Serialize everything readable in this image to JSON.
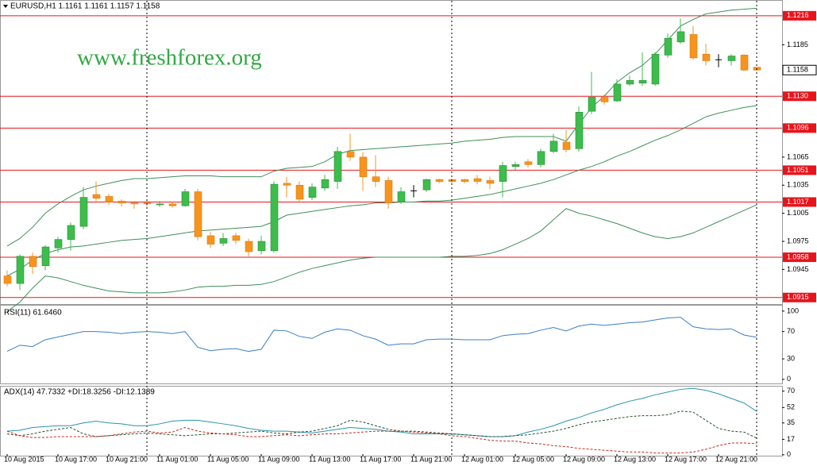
{
  "chart_data": [
    {
      "type": "candlestick",
      "title": "EURUSD,H1  1.1161 1.1161 1.1157 1.1158",
      "watermark": "www.freshforex.org",
      "categories": [
        "10 Aug 2015",
        null,
        null,
        null,
        "10 Aug 17:00",
        null,
        null,
        null,
        "10 Aug 21:00",
        null,
        null,
        null,
        "11 Aug 01:00",
        null,
        null,
        null,
        "11 Aug 05:00",
        null,
        null,
        null,
        "11 Aug 09:00",
        null,
        null,
        null,
        "11 Aug 13:00",
        null,
        null,
        null,
        "11 Aug 17:00",
        null,
        null,
        null,
        "11 Aug 21:00",
        null,
        null,
        null,
        "12 Aug 01:00",
        null,
        null,
        null,
        "12 Aug 05:00",
        null,
        null,
        null,
        "12 Aug 09:00",
        null,
        null,
        null,
        "12 Aug 13:00",
        null,
        null,
        null,
        "12 Aug 17:00",
        null,
        null,
        null,
        "12 Aug 21:00",
        null,
        null,
        null
      ],
      "open": [
        1.0938,
        1.093,
        1.0959,
        1.0949,
        1.0968,
        1.0977,
        1.0991,
        1.1025,
        1.1023,
        1.1018,
        1.1016,
        1.1016,
        1.1014,
        1.1015,
        1.1013,
        1.1028,
        1.0981,
        1.0973,
        1.0981,
        1.0975,
        1.0965,
        1.0965,
        1.1037,
        1.1035,
        1.1022,
        1.1032,
        1.1039,
        1.1071,
        1.1065,
        1.1044,
        1.104,
        1.1017,
        1.1029,
        1.103,
        1.1041,
        1.1041,
        1.1041,
        1.1042,
        1.104,
        1.1039,
        1.1055,
        1.106,
        1.1057,
        1.1071,
        1.1081,
        1.1074,
        1.1114,
        1.1129,
        1.1125,
        1.1143,
        1.1144,
        1.1143,
        1.1174,
        1.1188,
        1.1196,
        1.1175,
        1.1169,
        1.1168,
        1.1174,
        1.1161
      ],
      "high": [
        1.0944,
        1.0961,
        1.0963,
        1.0971,
        1.098,
        1.0995,
        1.1033,
        1.1039,
        1.1026,
        1.102,
        1.1018,
        1.1019,
        1.1018,
        1.1017,
        1.1031,
        1.1031,
        1.0985,
        1.0984,
        1.0984,
        1.0978,
        1.0981,
        1.1039,
        1.1044,
        1.1039,
        1.1037,
        1.1046,
        1.1076,
        1.109,
        1.107,
        1.1067,
        1.1044,
        1.1033,
        1.1035,
        1.1042,
        1.1042,
        1.1042,
        1.1042,
        1.1046,
        1.1044,
        1.106,
        1.106,
        1.1063,
        1.1074,
        1.109,
        1.1094,
        1.1119,
        1.1156,
        1.1132,
        1.1148,
        1.1152,
        1.1177,
        1.1177,
        1.1197,
        1.1213,
        1.1205,
        1.1186,
        1.1175,
        1.1175,
        1.1175,
        1.1161
      ],
      "low": [
        1.0927,
        1.0923,
        1.094,
        1.0944,
        1.0963,
        1.0965,
        1.0988,
        1.1016,
        1.1014,
        1.1012,
        1.101,
        1.1012,
        1.1012,
        1.1011,
        1.1012,
        1.0976,
        1.0968,
        1.097,
        1.0972,
        1.0959,
        1.0961,
        1.0963,
        1.1022,
        1.1016,
        1.1019,
        1.1029,
        1.1031,
        1.1061,
        1.1029,
        1.1033,
        1.101,
        1.1015,
        1.1022,
        1.1028,
        1.1037,
        1.1037,
        1.1037,
        1.1036,
        1.1031,
        1.1022,
        1.105,
        1.1054,
        1.1054,
        1.1069,
        1.107,
        1.1071,
        1.1111,
        1.1121,
        1.1124,
        1.1141,
        1.1141,
        1.1141,
        1.1171,
        1.1186,
        1.1169,
        1.1163,
        1.1161,
        1.1163,
        1.1157,
        1.1157
      ],
      "close": [
        1.093,
        1.0959,
        1.0948,
        1.0969,
        1.0977,
        1.0992,
        1.1022,
        1.1021,
        1.1017,
        1.1016,
        1.1015,
        1.1015,
        1.1015,
        1.1013,
        1.1028,
        1.098,
        1.0972,
        1.0978,
        1.0976,
        1.0964,
        1.0975,
        1.1036,
        1.1035,
        1.102,
        1.1033,
        1.1041,
        1.1071,
        1.1065,
        1.1044,
        1.1039,
        1.1016,
        1.1028,
        1.1029,
        1.1041,
        1.1039,
        1.1039,
        1.1039,
        1.1039,
        1.1037,
        1.1056,
        1.1057,
        1.1057,
        1.1071,
        1.1082,
        1.1073,
        1.1113,
        1.1129,
        1.1124,
        1.1143,
        1.1147,
        1.1147,
        1.1175,
        1.1192,
        1.1199,
        1.1171,
        1.1168,
        1.1169,
        1.1173,
        1.1158,
        1.1158
      ],
      "bull_color": "#3dbd4c",
      "bear_color": "#f7941d",
      "doji_color": "#000000",
      "bands": [
        {
          "color": "#3f8f5a",
          "values": [
            1.097,
            1.0978,
            1.099,
            1.1005,
            1.1015,
            1.1023,
            1.103,
            1.1034,
            1.1037,
            1.104,
            1.1042,
            1.1042,
            1.1043,
            1.1044,
            1.1045,
            1.1045,
            1.1045,
            1.1044,
            1.1044,
            1.1044,
            1.1044,
            1.105,
            1.1053,
            1.1054,
            1.1055,
            1.106,
            1.1068,
            1.1072,
            1.1073,
            1.1074,
            1.1075,
            1.1076,
            1.1077,
            1.1078,
            1.1079,
            1.108,
            1.1082,
            1.1083,
            1.1084,
            1.1086,
            1.1087,
            1.1087,
            1.1087,
            1.1087,
            1.1082,
            1.11,
            1.1118,
            1.113,
            1.1145,
            1.1155,
            1.1163,
            1.1175,
            1.119,
            1.1205,
            1.1212,
            1.1218,
            1.122,
            1.1222,
            1.1223,
            1.1224
          ]
        },
        {
          "color": "#3f8f5a",
          "values": [
            1.0938,
            1.0945,
            1.0955,
            1.0962,
            1.0966,
            1.0969,
            1.097,
            1.0972,
            1.0974,
            1.0976,
            1.0977,
            1.0978,
            1.098,
            1.0982,
            1.0984,
            1.0986,
            1.0987,
            1.0988,
            1.0989,
            1.099,
            1.0991,
            1.0996,
            1.1003,
            1.1005,
            1.1007,
            1.1009,
            1.1011,
            1.1013,
            1.1014,
            1.1016,
            1.1016,
            1.1017,
            1.1017,
            1.1018,
            1.1018,
            1.1019,
            1.1021,
            1.1023,
            1.1025,
            1.1028,
            1.1031,
            1.1034,
            1.1037,
            1.1041,
            1.1046,
            1.1051,
            1.1055,
            1.106,
            1.1066,
            1.1071,
            1.1077,
            1.1083,
            1.1088,
            1.1094,
            1.1101,
            1.1108,
            1.1112,
            1.1115,
            1.1118,
            1.112
          ]
        },
        {
          "color": "#3f8f5a",
          "values": [
            1.09,
            1.091,
            1.0925,
            1.0938,
            1.0936,
            1.0932,
            1.0928,
            1.0925,
            1.0922,
            1.0921,
            1.092,
            1.092,
            1.092,
            1.0921,
            1.0923,
            1.0926,
            1.0927,
            1.0927,
            1.0928,
            1.0928,
            1.0929,
            1.0932,
            1.0937,
            1.0942,
            1.0946,
            1.0949,
            1.0952,
            1.0955,
            1.0957,
            1.0958,
            1.0958,
            1.0958,
            1.0958,
            1.0958,
            1.0958,
            1.0959,
            1.0959,
            1.096,
            1.0962,
            1.0966,
            1.0972,
            1.0978,
            1.0986,
            1.0998,
            1.101,
            1.1005,
            1.1002,
            1.0998,
            1.0994,
            1.0989,
            1.0984,
            1.098,
            1.0978,
            1.098,
            1.0984,
            1.099,
            1.0996,
            1.1002,
            1.1008,
            1.1014
          ]
        }
      ],
      "levels": {
        "color": "#e8141c",
        "values": [
          1.1216,
          {
            "value": 1.113,
            "label": "1.1130"
          },
          1.1096,
          1.1051,
          1.1017,
          1.0958,
          1.0915
        ]
      },
      "current_price": 1.1158,
      "ylim": [
        1.0908,
        1.1232
      ],
      "yticks": [
        1.1185,
        1.1065,
        1.1035,
        1.1005,
        1.0975,
        1.0945
      ]
    },
    {
      "type": "line",
      "title": "RSI(11) 61.6460",
      "series": [
        {
          "color": "#3b7fc4",
          "values": [
            41,
            50,
            48,
            58,
            62,
            66,
            70,
            70,
            69,
            67,
            69,
            70,
            69,
            67,
            70,
            47,
            42,
            44,
            45,
            41,
            44,
            72,
            71,
            63,
            60,
            69,
            74,
            72,
            64,
            59,
            50,
            52,
            52,
            58,
            59,
            59,
            58,
            58,
            58,
            64,
            66,
            67,
            72,
            76,
            71,
            78,
            81,
            79,
            81,
            83,
            84,
            87,
            90,
            91,
            77,
            74,
            73,
            74,
            65,
            61.646
          ]
        }
      ],
      "ylim": [
        -6,
        108
      ],
      "yticks": [
        0,
        30,
        70,
        100
      ]
    },
    {
      "type": "line",
      "title": "ADX(14) 47.7332 +DI:18.3256 -DI:12.1389",
      "series": [
        {
          "color": "#2a93ad",
          "dashed": false,
          "values": [
            26,
            27,
            30,
            31,
            32,
            32,
            35,
            37,
            35,
            34,
            32,
            32,
            34,
            37,
            38,
            38,
            36,
            34,
            32,
            29,
            27,
            26,
            26,
            25,
            24,
            26,
            28,
            30,
            29,
            28,
            26,
            25,
            23,
            23,
            23,
            23,
            22,
            21,
            20,
            20,
            21,
            25,
            28,
            32,
            37,
            41,
            46,
            50,
            55,
            59,
            62,
            66,
            69,
            72,
            73,
            71,
            67,
            62,
            57,
            47.7332
          ]
        },
        {
          "color": "#24542f",
          "dashed": true,
          "values": [
            23,
            21,
            23,
            26,
            28,
            30,
            23,
            20,
            21,
            22,
            23,
            24,
            23,
            22,
            21,
            22,
            23,
            23,
            24,
            25,
            26,
            24,
            23,
            25,
            26,
            29,
            32,
            38,
            36,
            32,
            28,
            26,
            26,
            25,
            24,
            23,
            22,
            21,
            20,
            20,
            21,
            22,
            24,
            26,
            29,
            33,
            36,
            38,
            40,
            42,
            43,
            43,
            44,
            48,
            47,
            38,
            29,
            26,
            25,
            18.3256
          ]
        },
        {
          "color": "#c8281e",
          "dashed": true,
          "values": [
            26,
            21,
            19,
            19,
            20,
            20,
            20,
            20,
            21,
            23,
            25,
            26,
            24,
            25,
            30,
            26,
            24,
            23,
            22,
            20,
            20,
            21,
            22,
            21,
            22,
            23,
            23,
            24,
            25,
            26,
            26,
            26,
            25,
            24,
            23,
            21,
            20,
            18,
            16,
            15,
            15,
            13,
            12,
            10,
            9,
            7,
            6,
            5,
            4,
            3,
            3,
            2,
            2,
            2,
            3,
            6,
            10,
            13,
            13,
            12.1389
          ]
        }
      ],
      "ylim": [
        -1,
        75
      ],
      "yticks": [
        0,
        17,
        35,
        52,
        70
      ]
    }
  ]
}
